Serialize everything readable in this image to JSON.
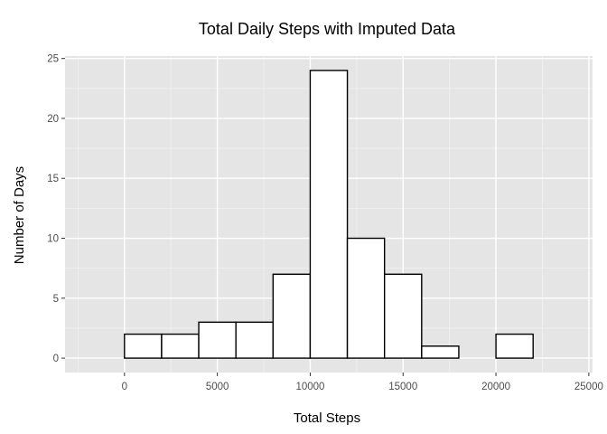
{
  "chart_data": {
    "type": "bar",
    "title": "Total Daily Steps with Imputed Data",
    "xlabel": "Total Steps",
    "ylabel": "Number of Days",
    "bin_width": 2000,
    "bins": [
      {
        "start": -2000,
        "end": 0,
        "count": 0
      },
      {
        "start": 0,
        "end": 2000,
        "count": 2
      },
      {
        "start": 2000,
        "end": 4000,
        "count": 2
      },
      {
        "start": 4000,
        "end": 6000,
        "count": 3
      },
      {
        "start": 6000,
        "end": 8000,
        "count": 3
      },
      {
        "start": 8000,
        "end": 10000,
        "count": 7
      },
      {
        "start": 10000,
        "end": 12000,
        "count": 24
      },
      {
        "start": 12000,
        "end": 14000,
        "count": 10
      },
      {
        "start": 14000,
        "end": 16000,
        "count": 7
      },
      {
        "start": 16000,
        "end": 18000,
        "count": 1
      },
      {
        "start": 18000,
        "end": 20000,
        "count": 0
      },
      {
        "start": 20000,
        "end": 22000,
        "count": 2
      },
      {
        "start": 22000,
        "end": 24000,
        "count": 0
      }
    ],
    "xlim": [
      -3200,
      25200
    ],
    "ylim": [
      -1.2,
      25.2
    ],
    "x_ticks": [
      0,
      5000,
      10000,
      15000,
      20000,
      25000
    ],
    "x_tick_labels": [
      "0",
      "5000",
      "10000",
      "15000",
      "20000",
      "25000"
    ],
    "y_ticks": [
      0,
      5,
      10,
      15,
      20,
      25
    ],
    "y_tick_labels": [
      "0",
      "5",
      "10",
      "15",
      "20",
      "25"
    ],
    "grid": true,
    "colors": {
      "panel_background": "#e5e5e5",
      "grid_major": "#ffffff",
      "grid_minor": "#f2f2f2",
      "bar_fill": "#ffffff",
      "bar_outline": "#000000"
    }
  }
}
